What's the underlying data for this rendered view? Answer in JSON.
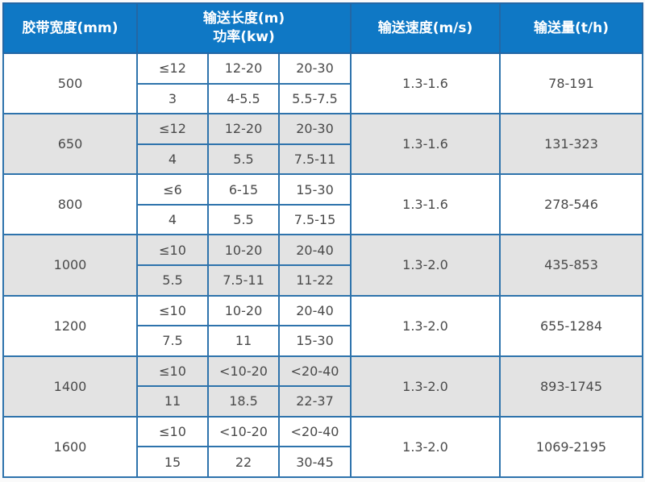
{
  "table": {
    "headers": {
      "belt_width": "胶带宽度(mm)",
      "length_label": "输送长度(m)",
      "power_label": "功率(kw)",
      "speed": "输送速度(m/s)",
      "capacity": "输送量(t/h)"
    },
    "rows": [
      {
        "width": "500",
        "lengths": [
          "≤12",
          "12-20",
          "20-30"
        ],
        "powers": [
          "3",
          "4-5.5",
          "5.5-7.5"
        ],
        "speed": "1.3-1.6",
        "capacity": "78-191"
      },
      {
        "width": "650",
        "lengths": [
          "≤12",
          "12-20",
          "20-30"
        ],
        "powers": [
          "4",
          "5.5",
          "7.5-11"
        ],
        "speed": "1.3-1.6",
        "capacity": "131-323"
      },
      {
        "width": "800",
        "lengths": [
          "≤6",
          "6-15",
          "15-30"
        ],
        "powers": [
          "4",
          "5.5",
          "7.5-15"
        ],
        "speed": "1.3-1.6",
        "capacity": "278-546"
      },
      {
        "width": "1000",
        "lengths": [
          "≤10",
          "10-20",
          "20-40"
        ],
        "powers": [
          "5.5",
          "7.5-11",
          "11-22"
        ],
        "speed": "1.3-2.0",
        "capacity": "435-853"
      },
      {
        "width": "1200",
        "lengths": [
          "≤10",
          "10-20",
          "20-40"
        ],
        "powers": [
          "7.5",
          "11",
          "15-30"
        ],
        "speed": "1.3-2.0",
        "capacity": "655-1284"
      },
      {
        "width": "1400",
        "lengths": [
          "≤10",
          "<10-20",
          "<20-40"
        ],
        "powers": [
          "11",
          "18.5",
          "22-37"
        ],
        "speed": "1.3-2.0",
        "capacity": "893-1745"
      },
      {
        "width": "1600",
        "lengths": [
          "≤10",
          "<10-20",
          "<20-40"
        ],
        "powers": [
          "15",
          "22",
          "30-45"
        ],
        "speed": "1.3-2.0",
        "capacity": "1069-2195"
      }
    ],
    "colors": {
      "header_bg": "#0f78c5",
      "border": "#2e73ac",
      "stripe_bg": "#e3e3e3",
      "text": "#4a4a4a",
      "header_text": "#ffffff"
    }
  }
}
